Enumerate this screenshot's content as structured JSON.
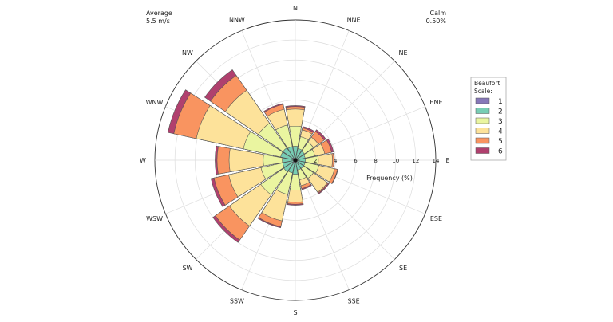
{
  "chart_data": {
    "type": "windrose",
    "directions": [
      "N",
      "NNE",
      "NE",
      "ENE",
      "E",
      "ESE",
      "SE",
      "SSE",
      "S",
      "SSW",
      "SW",
      "WSW",
      "W",
      "WNW",
      "NW",
      "NNW"
    ],
    "radial_axis": {
      "label": "Frequency (%)",
      "ticks": [
        2,
        4,
        6,
        8,
        10,
        12,
        14
      ],
      "range": [
        0,
        14
      ],
      "grid": true
    },
    "annotations": {
      "average_label": "Average",
      "average_value": "5.5 m/s",
      "calm_label": "Calm",
      "calm_value": "0.50%"
    },
    "legend": {
      "title_line1": "Beaufort",
      "title_line2": "Scale:",
      "placement": "right"
    },
    "series": [
      {
        "name": "1",
        "color": "#8678b8"
      },
      {
        "name": "2",
        "color": "#78cdb4"
      },
      {
        "name": "3",
        "color": "#eaf5a0"
      },
      {
        "name": "4",
        "color": "#fde29a"
      },
      {
        "name": "5",
        "color": "#f99460"
      },
      {
        "name": "6",
        "color": "#b0406e"
      }
    ],
    "cumulative_frequency_percent": [
      [
        0.2,
        1.4,
        3.4,
        5.1,
        5.35,
        5.45
      ],
      [
        0.2,
        1.2,
        2.4,
        3.1,
        3.3,
        3.45
      ],
      [
        0.2,
        1.1,
        2.2,
        2.8,
        3.5,
        3.7
      ],
      [
        0.2,
        1.0,
        2.0,
        3.0,
        3.7,
        3.9
      ],
      [
        0.2,
        1.0,
        2.3,
        3.7,
        3.85,
        3.9
      ],
      [
        0.2,
        1.0,
        2.4,
        4.0,
        4.3,
        4.35
      ],
      [
        0.2,
        1.0,
        2.2,
        3.9,
        4.0,
        4.1
      ],
      [
        0.2,
        1.0,
        2.0,
        2.6,
        2.9,
        3.0
      ],
      [
        0.2,
        1.4,
        3.0,
        4.2,
        4.4,
        4.5
      ],
      [
        0.2,
        1.3,
        3.5,
        6.2,
        6.8,
        6.9
      ],
      [
        0.3,
        1.4,
        4.2,
        8.0,
        9.7,
        10.0
      ],
      [
        0.2,
        1.3,
        3.5,
        6.8,
        8.3,
        8.6
      ],
      [
        0.2,
        1.3,
        3.2,
        6.6,
        7.8,
        8.0
      ],
      [
        0.3,
        1.5,
        5.3,
        10.1,
        12.4,
        13.0
      ],
      [
        0.3,
        1.5,
        4.5,
        8.5,
        10.3,
        11.0
      ],
      [
        0.2,
        1.4,
        3.6,
        5.2,
        5.7,
        5.8
      ]
    ]
  }
}
